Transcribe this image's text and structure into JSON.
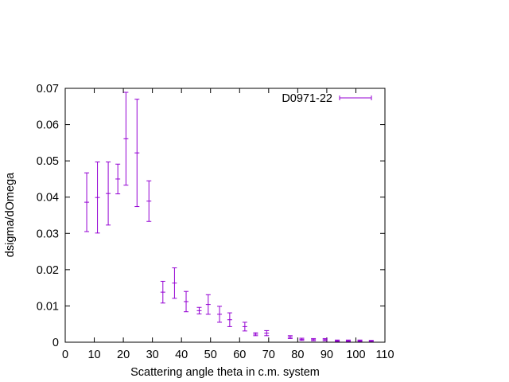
{
  "chart_data": {
    "type": "scatter",
    "xlabel": "Scattering angle theta in c.m. system",
    "ylabel": "dsigma/dOmega",
    "xlim": [
      0,
      110
    ],
    "ylim": [
      0,
      0.07
    ],
    "x_ticks": [
      "0",
      "10",
      "20",
      "30",
      "40",
      "50",
      "60",
      "70",
      "80",
      "90",
      "100",
      "110"
    ],
    "y_ticks": [
      "0",
      "0.01",
      "0.02",
      "0.03",
      "0.04",
      "0.05",
      "0.06",
      "0.07"
    ],
    "grid": false,
    "legend_position": "top-right",
    "series": [
      {
        "name": "D0971-22",
        "color": "#9400d3",
        "style": "error-bars",
        "points": [
          {
            "x": 7.4,
            "y": 0.0386,
            "err": 0.0081
          },
          {
            "x": 11.1,
            "y": 0.0399,
            "err": 0.0098
          },
          {
            "x": 14.8,
            "y": 0.041,
            "err": 0.0087
          },
          {
            "x": 18.1,
            "y": 0.045,
            "err": 0.0041
          },
          {
            "x": 20.9,
            "y": 0.0561,
            "err": 0.0128
          },
          {
            "x": 24.7,
            "y": 0.0522,
            "err": 0.0148
          },
          {
            "x": 28.8,
            "y": 0.0389,
            "err": 0.0056
          },
          {
            "x": 33.6,
            "y": 0.0138,
            "err": 0.003
          },
          {
            "x": 37.6,
            "y": 0.0163,
            "err": 0.0042
          },
          {
            "x": 41.6,
            "y": 0.0112,
            "err": 0.0028
          },
          {
            "x": 46.1,
            "y": 0.0087,
            "err": 0.0009
          },
          {
            "x": 49.2,
            "y": 0.0104,
            "err": 0.0027
          },
          {
            "x": 53.1,
            "y": 0.0077,
            "err": 0.0022
          },
          {
            "x": 56.6,
            "y": 0.0062,
            "err": 0.0019
          },
          {
            "x": 61.8,
            "y": 0.0043,
            "err": 0.0012
          },
          {
            "x": 65.5,
            "y": 0.0022,
            "err": 0.0004
          },
          {
            "x": 69.3,
            "y": 0.0025,
            "err": 0.0007
          },
          {
            "x": 77.4,
            "y": 0.0014,
            "err": 0.0004
          },
          {
            "x": 81.4,
            "y": 0.0008,
            "err": 0.0003
          },
          {
            "x": 85.4,
            "y": 0.0007,
            "err": 0.0003
          },
          {
            "x": 89.4,
            "y": 0.0007,
            "err": 0.0003
          },
          {
            "x": 93.6,
            "y": 0.0004,
            "err": 0.0002
          },
          {
            "x": 97.4,
            "y": 0.0004,
            "err": 0.0002
          },
          {
            "x": 101.4,
            "y": 0.0004,
            "err": 0.0002
          },
          {
            "x": 105.3,
            "y": 0.0003,
            "err": 0.0002
          }
        ]
      }
    ]
  }
}
